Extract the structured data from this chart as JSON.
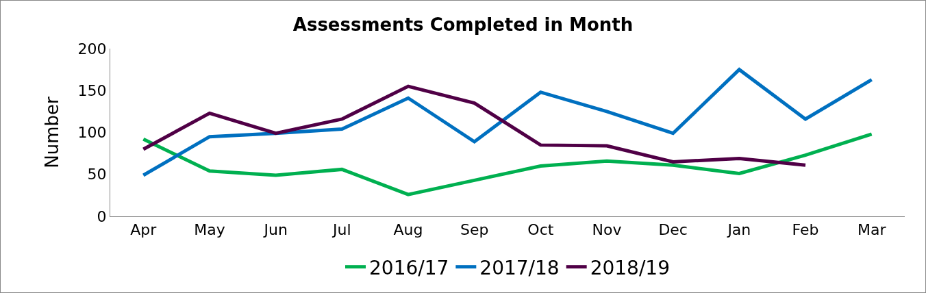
{
  "chart_data": {
    "type": "line",
    "title": "Assessments Completed in Month",
    "ylabel": "Number",
    "categories": [
      "Apr",
      "May",
      "Jun",
      "Jul",
      "Aug",
      "Sep",
      "Oct",
      "Nov",
      "Dec",
      "Jan",
      "Feb",
      "Mar"
    ],
    "series": [
      {
        "name": "2016/17",
        "color": "#00b050",
        "values": [
          92,
          54,
          49,
          56,
          26,
          43,
          60,
          66,
          61,
          51,
          73,
          98
        ]
      },
      {
        "name": "2017/18",
        "color": "#0070c0",
        "values": [
          49,
          95,
          99,
          104,
          141,
          89,
          148,
          125,
          99,
          175,
          116,
          163
        ]
      },
      {
        "name": "2018/19",
        "color": "#500046",
        "values": [
          80,
          123,
          99,
          116,
          155,
          135,
          85,
          84,
          65,
          69,
          61,
          null
        ]
      }
    ],
    "ylim": [
      0,
      200
    ],
    "yticks": [
      0,
      50,
      100,
      150,
      200
    ],
    "grid": false,
    "legend": "bottom",
    "marker": "none",
    "line_style": "solid"
  }
}
